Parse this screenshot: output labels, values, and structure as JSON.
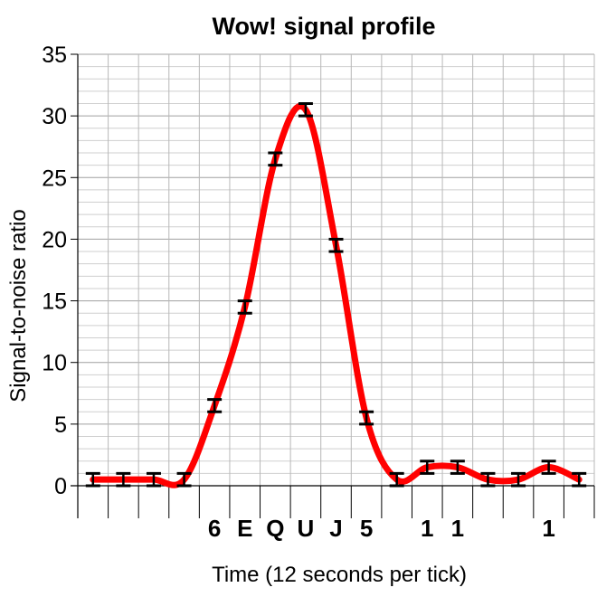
{
  "chart_data": {
    "type": "line",
    "title": "Wow! signal profile",
    "xlabel": "Time (12 seconds per tick)",
    "ylabel": "Signal-to-noise ratio",
    "ylim": [
      0,
      35
    ],
    "yticks": [
      0,
      5,
      10,
      15,
      20,
      25,
      30,
      35
    ],
    "y_minor_step": 1,
    "x_count": 17,
    "x_tick_labels": [
      "",
      "",
      "",
      "",
      "6",
      "E",
      "Q",
      "U",
      "J",
      "5",
      "",
      "1",
      "1",
      "",
      "",
      "1",
      ""
    ],
    "grid": true,
    "line_color": "#ff0000",
    "series": [
      {
        "values": [
          0.5,
          0.5,
          0.5,
          0.5,
          6.5,
          14.5,
          26.5,
          30.5,
          19.5,
          5.5,
          0.5,
          1.5,
          1.5,
          0.5,
          0.5,
          1.5,
          0.5
        ],
        "error": [
          0.5,
          0.5,
          0.5,
          0.5,
          0.5,
          0.5,
          0.5,
          0.5,
          0.5,
          0.5,
          0.5,
          0.5,
          0.5,
          0.5,
          0.5,
          0.5,
          0.5
        ]
      }
    ]
  }
}
